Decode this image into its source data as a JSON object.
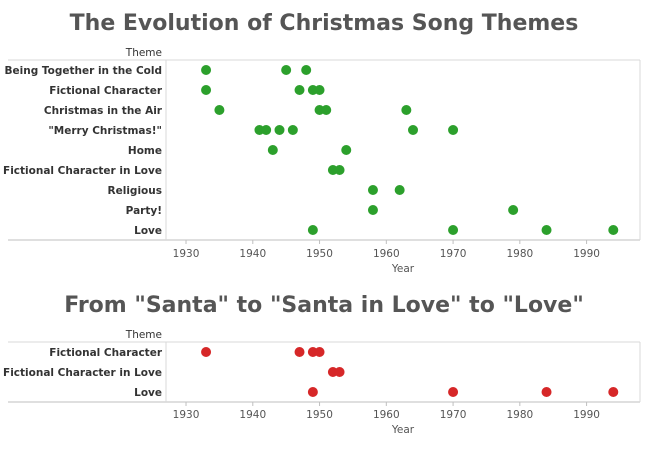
{
  "chart_data": [
    {
      "type": "scatter",
      "title": "The Evolution of Christmas Song Themes",
      "row_header": "Theme",
      "xlabel": "Year",
      "xlim": [
        1927,
        1998
      ],
      "xticks": [
        "1930",
        "1940",
        "1950",
        "1960",
        "1970",
        "1980",
        "1990"
      ],
      "dot_color": "#2ca02c",
      "categories": [
        "Being Together in the Cold",
        "Fictional Character",
        "Christmas in the Air",
        "\"Merry Christmas!\"",
        "Home",
        "Fictional Character in Love",
        "Religious",
        "Party!",
        "Love"
      ],
      "points": [
        {
          "theme": "Being Together in the Cold",
          "years": [
            1933,
            1945,
            1948
          ]
        },
        {
          "theme": "Fictional Character",
          "years": [
            1933,
            1947,
            1949,
            1950
          ]
        },
        {
          "theme": "Christmas in the Air",
          "years": [
            1935,
            1950,
            1951,
            1963
          ]
        },
        {
          "theme": "\"Merry Christmas!\"",
          "years": [
            1941,
            1942,
            1944,
            1946,
            1964,
            1970
          ]
        },
        {
          "theme": "Home",
          "years": [
            1943,
            1954
          ]
        },
        {
          "theme": "Fictional Character in Love",
          "years": [
            1952,
            1953
          ]
        },
        {
          "theme": "Religious",
          "years": [
            1958,
            1962
          ]
        },
        {
          "theme": "Party!",
          "years": [
            1958,
            1979
          ]
        },
        {
          "theme": "Love",
          "years": [
            1949,
            1970,
            1984,
            1994
          ]
        }
      ]
    },
    {
      "type": "scatter",
      "title": "From \"Santa\" to \"Santa in Love\" to \"Love\"",
      "row_header": "Theme",
      "xlabel": "Year",
      "xlim": [
        1927,
        1998
      ],
      "xticks": [
        "1930",
        "1940",
        "1950",
        "1960",
        "1970",
        "1980",
        "1990"
      ],
      "dot_color": "#d62728",
      "categories": [
        "Fictional Character",
        "Fictional Character in Love",
        "Love"
      ],
      "points": [
        {
          "theme": "Fictional Character",
          "years": [
            1933,
            1947,
            1949,
            1950
          ]
        },
        {
          "theme": "Fictional Character in Love",
          "years": [
            1952,
            1953
          ]
        },
        {
          "theme": "Love",
          "years": [
            1949,
            1970,
            1984,
            1994
          ]
        }
      ]
    }
  ]
}
